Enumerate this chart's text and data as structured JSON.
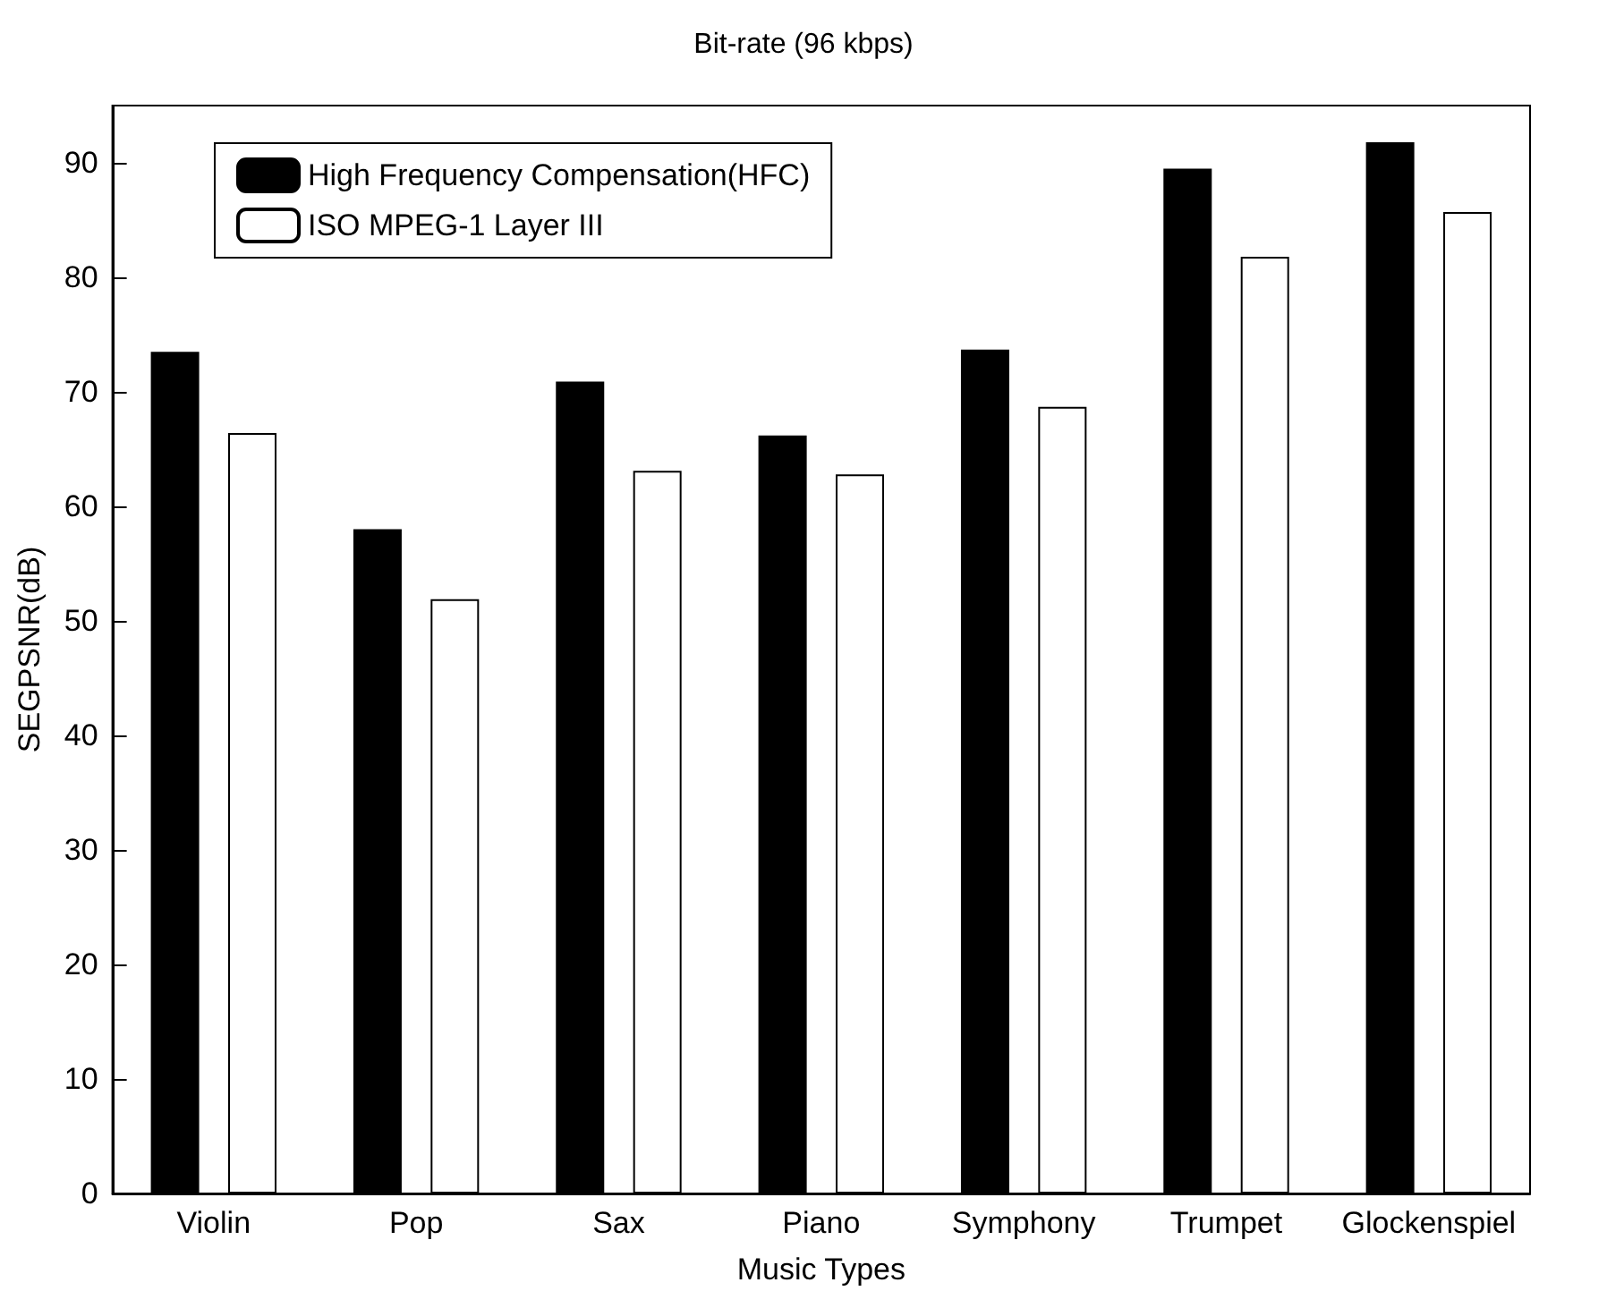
{
  "chart_data": {
    "type": "bar",
    "title": "Bit-rate (96 kbps)",
    "xlabel": "Music Types",
    "ylabel": "SEGPSNR(dB)",
    "categories": [
      "Violin",
      "Pop",
      "Sax",
      "Piano",
      "Symphony",
      "Trumpet",
      "Glockenspiel"
    ],
    "series": [
      {
        "name": "High Frequency Compensation(HFC)",
        "color": "#000000",
        "values": [
          73.5,
          58,
          70.9,
          66.2,
          73.7,
          89.5,
          91.8
        ]
      },
      {
        "name": "ISO MPEG-1 Layer III",
        "color": "#ffffff",
        "values": [
          66.4,
          51.9,
          63.1,
          62.8,
          68.7,
          81.8,
          85.7
        ]
      }
    ],
    "ylim": [
      0,
      95
    ],
    "yticks": [
      0,
      10,
      20,
      30,
      40,
      50,
      60,
      70,
      80,
      90
    ],
    "grid": false,
    "legend": "top left"
  }
}
